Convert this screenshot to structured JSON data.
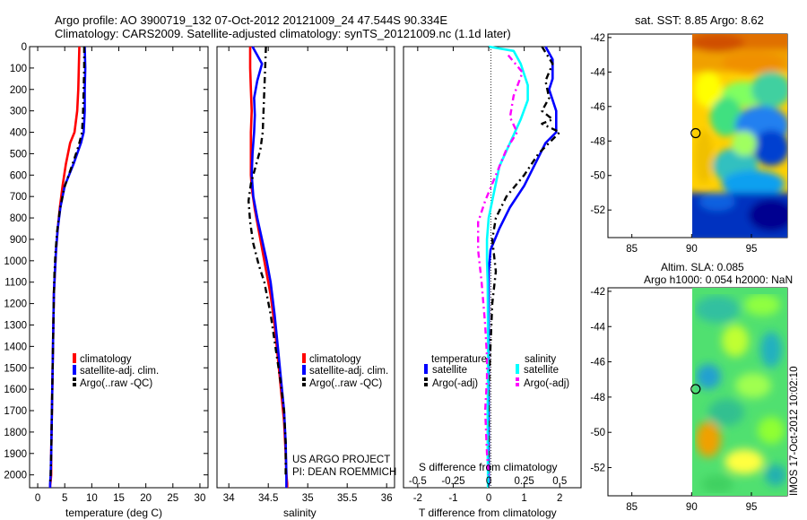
{
  "figure": {
    "title_line1": "Argo profile: AO 3900719_132 07-Oct-2012 20121009_24 47.544S 90.334E",
    "title_line2": "Climatology: CARS2009. Satellite-adjusted climatology: synTS_20121009.nc (1.1d later)",
    "credit_line1": "US ARGO PROJECT",
    "credit_line2": "PI: DEAN ROEMMICH",
    "timestamp": "IMOS 17-Oct-2012 10:02:10",
    "map1_title": "sat. SST: 8.85 Argo: 8.62",
    "map2_title_line1": "Altim. SLA: 0.085",
    "map2_title_line2": "Argo h1000: 0.054 h2000: NaN"
  },
  "chart_data": [
    {
      "type": "line",
      "id": "temperature",
      "xlabel": "temperature (deg C)",
      "xticks": [
        "0",
        "5",
        "10",
        "15",
        "20",
        "25",
        "30"
      ],
      "xlim": [
        -1.5,
        31.5
      ],
      "ylim": [
        0,
        2060
      ],
      "yticks": [
        "0",
        "100",
        "200",
        "300",
        "400",
        "500",
        "600",
        "700",
        "800",
        "900",
        "1000",
        "1100",
        "1200",
        "1300",
        "1400",
        "1500",
        "1600",
        "1700",
        "1800",
        "1900",
        "2000"
      ],
      "legend": [
        "climatology",
        "satellite-adj. clim.",
        "Argo(..raw -QC)"
      ],
      "series": [
        {
          "name": "climatology",
          "color": "#ff0000",
          "style": "solid",
          "x": [
            7.7,
            7.6,
            7.5,
            7.3,
            6.8,
            6.0,
            5.2,
            4.6,
            4.1,
            3.7,
            3.4,
            3.2,
            3.0,
            2.9,
            2.8,
            2.7,
            2.6,
            2.5,
            2.5,
            2.4,
            2.3,
            2.3
          ],
          "y": [
            0,
            100,
            200,
            300,
            400,
            450,
            550,
            650,
            750,
            850,
            950,
            1050,
            1150,
            1300,
            1450,
            1600,
            1750,
            1900,
            2000,
            2030,
            2050,
            2060
          ]
        },
        {
          "name": "satellite-adj. clim.",
          "color": "#0000ff",
          "style": "solid",
          "x": [
            8.7,
            8.8,
            8.7,
            8.7,
            8.5,
            8.0,
            6.6,
            5.0,
            4.2,
            3.7,
            3.4,
            3.2,
            3.0,
            2.9,
            2.8,
            2.7,
            2.6,
            2.5,
            2.4,
            2.3,
            2.3
          ],
          "y": [
            0,
            100,
            200,
            300,
            400,
            450,
            550,
            650,
            750,
            850,
            950,
            1050,
            1150,
            1300,
            1450,
            1600,
            1750,
            1900,
            2000,
            2040,
            2060
          ]
        },
        {
          "name": "Argo(..raw -QC)",
          "color": "#000000",
          "style": "dash",
          "x": [
            8.6,
            8.6,
            8.5,
            8.4,
            8.2,
            7.6,
            6.3,
            4.9,
            4.1,
            3.6,
            3.3,
            3.1,
            3.0,
            2.9,
            2.8,
            2.7,
            2.6,
            2.5,
            2.4,
            2.3
          ],
          "y": [
            0,
            100,
            200,
            300,
            400,
            460,
            560,
            660,
            760,
            860,
            960,
            1060,
            1160,
            1300,
            1450,
            1600,
            1750,
            1900,
            2000,
            2040
          ]
        }
      ]
    },
    {
      "type": "line",
      "id": "salinity",
      "xlabel": "salinity",
      "xticks": [
        "34",
        "34.5",
        "35",
        "35.5",
        "36"
      ],
      "xlim": [
        33.85,
        36.1
      ],
      "ylim": [
        0,
        2060
      ],
      "legend": [
        "climatology",
        "satellite-adj. clim.",
        "Argo(..raw -QC)"
      ],
      "series": [
        {
          "name": "climatology",
          "color": "#ff0000",
          "style": "solid",
          "x": [
            34.27,
            34.27,
            34.28,
            34.29,
            34.28,
            34.28,
            34.28,
            34.29,
            34.33,
            34.38,
            34.43,
            34.48,
            34.53,
            34.58,
            34.62,
            34.66,
            34.7,
            34.72,
            34.73,
            34.74,
            34.74
          ],
          "y": [
            0,
            100,
            200,
            300,
            400,
            500,
            600,
            660,
            760,
            860,
            960,
            1060,
            1160,
            1300,
            1450,
            1600,
            1750,
            1900,
            2000,
            2040,
            2060
          ]
        },
        {
          "name": "satellite-adj. clim.",
          "color": "#0000ff",
          "style": "solid",
          "x": [
            34.3,
            34.42,
            34.36,
            34.32,
            34.33,
            34.32,
            34.3,
            34.29,
            34.31,
            34.36,
            34.42,
            34.48,
            34.53,
            34.58,
            34.62,
            34.66,
            34.7,
            34.72,
            34.73,
            34.73
          ],
          "y": [
            0,
            80,
            160,
            240,
            320,
            400,
            500,
            600,
            700,
            800,
            900,
            1000,
            1100,
            1250,
            1400,
            1550,
            1700,
            1850,
            2000,
            2060
          ]
        },
        {
          "name": "Argo(..raw -QC)",
          "color": "#000000",
          "style": "dash",
          "x": [
            34.47,
            34.46,
            34.45,
            34.44,
            34.43,
            34.4,
            34.34,
            34.28,
            34.25,
            34.27,
            34.31,
            34.38,
            34.45,
            34.53,
            34.59,
            34.65,
            34.7,
            34.72,
            34.72
          ],
          "y": [
            0,
            100,
            200,
            300,
            400,
            480,
            560,
            640,
            720,
            820,
            920,
            1020,
            1100,
            1250,
            1400,
            1550,
            1700,
            1850,
            2000
          ]
        }
      ]
    },
    {
      "type": "line",
      "id": "difference",
      "xlabel": "T difference from climatology",
      "xlabel_top": "S difference from climatology",
      "xticks": [
        "-2",
        "-1",
        "0",
        "1",
        "2"
      ],
      "xticks_top": [
        "-0.5",
        "-0.25",
        "0",
        "0.25",
        "0.5"
      ],
      "xlim": [
        -2.4,
        2.6
      ],
      "ylim": [
        0,
        2060
      ],
      "legend": [
        {
          "group": "temperature",
          "label": "satellite",
          "color": "#0000ff"
        },
        {
          "group": "temperature",
          "label": "Argo(-adj)",
          "color": "#000000"
        },
        {
          "group": "salinity",
          "label": "satellite",
          "color": "#00ffff"
        },
        {
          "group": "salinity",
          "label": "Argo(-adj)",
          "color": "#ff00ff"
        }
      ],
      "series": [
        {
          "name": "T satellite",
          "color": "#0000ff",
          "style": "solid",
          "x": [
            1.6,
            1.8,
            1.8,
            1.8,
            1.7,
            1.9,
            1.9,
            1.6,
            1.3,
            1.0,
            0.6,
            0.3,
            0.05,
            0.0,
            0.0,
            0.0,
            0.0,
            0.0,
            0.0,
            0.0
          ],
          "y": [
            0,
            60,
            100,
            150,
            200,
            300,
            400,
            450,
            550,
            650,
            750,
            850,
            950,
            1050,
            1200,
            1400,
            1600,
            1800,
            2000,
            2050
          ]
        },
        {
          "name": "T Argo(-adj)",
          "color": "#000000",
          "style": "dash",
          "x": [
            1.5,
            1.8,
            1.6,
            1.7,
            1.5,
            1.8,
            1.5,
            2.0,
            1.4,
            1.0,
            0.5,
            0.2,
            0.1,
            0.2,
            0.1,
            0.05,
            0.0,
            0.0,
            0.0
          ],
          "y": [
            0,
            80,
            160,
            240,
            300,
            340,
            360,
            400,
            500,
            600,
            700,
            800,
            900,
            1050,
            1200,
            1400,
            1600,
            1800,
            2000
          ]
        },
        {
          "name": "S satellite",
          "color": "#00ffff",
          "style": "solid",
          "x": [
            0.0,
            0.7,
            0.9,
            1.1,
            1.1,
            0.9,
            0.6,
            0.3,
            0.0,
            -0.05,
            -0.05,
            -0.03,
            -0.02,
            -0.02,
            -0.03,
            -0.03,
            -0.02,
            -0.02
          ],
          "y": [
            0,
            20,
            80,
            180,
            250,
            340,
            450,
            560,
            800,
            900,
            1000,
            1100,
            1300,
            1500,
            1700,
            1900,
            2000,
            2060
          ]
        },
        {
          "name": "S Argo(-adj)",
          "color": "#ff00ff",
          "style": "dash",
          "x": [
            0.55,
            0.95,
            0.7,
            0.6,
            0.8,
            0.5,
            0.2,
            -0.1,
            -0.3,
            -0.3,
            -0.2,
            -0.1,
            -0.05,
            -0.05,
            -0.1,
            -0.05,
            0.0
          ],
          "y": [
            40,
            120,
            230,
            330,
            400,
            480,
            600,
            720,
            820,
            950,
            1100,
            1300,
            1450,
            1550,
            1700,
            1900,
            2000
          ]
        }
      ]
    },
    {
      "type": "heatmap",
      "id": "sst_map",
      "xticks": [
        "85",
        "90",
        "95"
      ],
      "xlim": [
        83,
        98
      ],
      "yticks": [
        "-42",
        "-44",
        "-46",
        "-48",
        "-50",
        "-52"
      ],
      "ylim": [
        -53.6,
        -41.8
      ],
      "data_lon_range": [
        90,
        98
      ],
      "marker": {
        "lon": 90.334,
        "lat": -47.544
      }
    },
    {
      "type": "heatmap",
      "id": "sla_map",
      "xticks": [
        "85",
        "90",
        "95"
      ],
      "xlim": [
        83,
        98
      ],
      "yticks": [
        "-42",
        "-44",
        "-46",
        "-48",
        "-50",
        "-52"
      ],
      "ylim": [
        -53.6,
        -41.8
      ],
      "data_lon_range": [
        90,
        98
      ],
      "marker": {
        "lon": 90.334,
        "lat": -47.544
      }
    }
  ]
}
